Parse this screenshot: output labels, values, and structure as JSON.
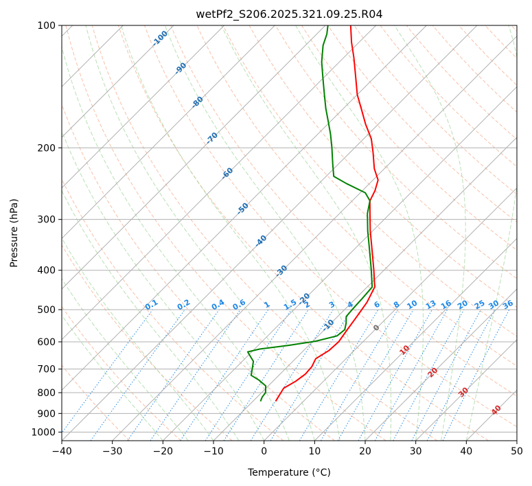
{
  "chart_data": {
    "type": "line",
    "title": "wetPf2_S206.2025.321.09.25.R04",
    "xlabel": "Temperature (°C)",
    "ylabel": "Pressure (hPa)",
    "xlim": [
      -40,
      50
    ],
    "ylim": [
      1050,
      100
    ],
    "y_scale": "log",
    "x_ticks": [
      -40,
      -30,
      -20,
      -10,
      0,
      10,
      20,
      30,
      40,
      50
    ],
    "x_tick_labels": [
      "−40",
      "−30",
      "−20",
      "−10",
      "0",
      "10",
      "20",
      "30",
      "40",
      "50"
    ],
    "y_ticks": [
      100,
      200,
      300,
      400,
      500,
      600,
      700,
      800,
      900,
      1000
    ],
    "y_tick_labels": [
      "100",
      "200",
      "300",
      "400",
      "500",
      "600",
      "700",
      "800",
      "900",
      "1000"
    ],
    "grid": true,
    "skew_deg": 45,
    "isotherms_all": [
      -170,
      -160,
      -150,
      -140,
      -130,
      -120,
      -110,
      -100,
      -90,
      -80,
      -70,
      -60,
      -50,
      -40,
      -30,
      -20,
      -10,
      0,
      10,
      20,
      30,
      40,
      50
    ],
    "isotherm_labels": [
      {
        "t": -100,
        "p": 108,
        "text": "-100"
      },
      {
        "t": -90,
        "p": 128,
        "text": "-90"
      },
      {
        "t": -80,
        "p": 155,
        "text": "-80"
      },
      {
        "t": -70,
        "p": 190,
        "text": "-70"
      },
      {
        "t": -60,
        "p": 232,
        "text": "-60"
      },
      {
        "t": -50,
        "p": 283,
        "text": "-50"
      },
      {
        "t": -40,
        "p": 340,
        "text": "-40"
      },
      {
        "t": -30,
        "p": 403,
        "text": "-30"
      },
      {
        "t": -20,
        "p": 472,
        "text": "-20"
      },
      {
        "t": -10,
        "p": 548,
        "text": "-10"
      },
      {
        "t": 0,
        "p": 555,
        "text": "0"
      },
      {
        "t": 10,
        "p": 630,
        "text": "10"
      },
      {
        "t": 20,
        "p": 715,
        "text": "20"
      },
      {
        "t": 30,
        "p": 800,
        "text": "30"
      },
      {
        "t": 40,
        "p": 885,
        "text": "40"
      }
    ],
    "mixing_ratio_labels": [
      "0.1",
      "0.2",
      "0.4",
      "0.6",
      "1",
      "1.5",
      "2",
      "3",
      "4",
      "6",
      "8",
      "10",
      "13",
      "16",
      "20",
      "25",
      "30",
      "36"
    ],
    "mixing_ratios": [
      0.1,
      0.2,
      0.4,
      0.6,
      1,
      1.5,
      2,
      3,
      4,
      6,
      8,
      10,
      13,
      16,
      20,
      25,
      30,
      36
    ],
    "dry_adiabats_c": [
      -30,
      -20,
      -10,
      0,
      10,
      20,
      30,
      40,
      50,
      60,
      70,
      80,
      90,
      100,
      110,
      120,
      130,
      140,
      150,
      160,
      170,
      180,
      190,
      200,
      210,
      220,
      230,
      240,
      250,
      260,
      270,
      280,
      290,
      300,
      310,
      320,
      330,
      340,
      350
    ],
    "moist_adiabats_c": [
      -20,
      -15,
      -10,
      -5,
      0,
      5,
      10,
      15,
      20,
      25,
      30,
      35,
      40
    ],
    "series": [
      {
        "color": "#ff0000",
        "points": [
          {
            "p": 840,
            "t": -5.5
          },
          {
            "p": 810,
            "t": -6.0
          },
          {
            "p": 780,
            "t": -6.5
          },
          {
            "p": 750,
            "t": -5.5
          },
          {
            "p": 720,
            "t": -5.0
          },
          {
            "p": 690,
            "t": -5.2
          },
          {
            "p": 660,
            "t": -6.0
          },
          {
            "p": 630,
            "t": -5.0
          },
          {
            "p": 600,
            "t": -4.8
          },
          {
            "p": 560,
            "t": -5.5
          },
          {
            "p": 520,
            "t": -6.2
          },
          {
            "p": 480,
            "t": -7.0
          },
          {
            "p": 440,
            "t": -8.5
          },
          {
            "p": 400,
            "t": -12.0
          },
          {
            "p": 360,
            "t": -16.0
          },
          {
            "p": 320,
            "t": -20.5
          },
          {
            "p": 290,
            "t": -24.0
          },
          {
            "p": 270,
            "t": -26.5
          },
          {
            "p": 255,
            "t": -27.5
          },
          {
            "p": 240,
            "t": -29.0
          },
          {
            "p": 225,
            "t": -32.0
          },
          {
            "p": 205,
            "t": -35.5
          },
          {
            "p": 190,
            "t": -38.5
          },
          {
            "p": 175,
            "t": -42.5
          },
          {
            "p": 160,
            "t": -46.5
          },
          {
            "p": 148,
            "t": -50.0
          },
          {
            "p": 135,
            "t": -53.5
          },
          {
            "p": 120,
            "t": -58.0
          },
          {
            "p": 110,
            "t": -61.5
          },
          {
            "p": 100,
            "t": -65.0
          }
        ]
      },
      {
        "color": "#008000",
        "points": [
          {
            "p": 840,
            "t": -8.5
          },
          {
            "p": 820,
            "t": -9.0
          },
          {
            "p": 800,
            "t": -9.2
          },
          {
            "p": 770,
            "t": -10.5
          },
          {
            "p": 745,
            "t": -13.0
          },
          {
            "p": 725,
            "t": -15.5
          },
          {
            "p": 700,
            "t": -16.5
          },
          {
            "p": 670,
            "t": -17.8
          },
          {
            "p": 650,
            "t": -19.5
          },
          {
            "p": 635,
            "t": -20.8
          },
          {
            "p": 625,
            "t": -19.0
          },
          {
            "p": 612,
            "t": -14.0
          },
          {
            "p": 598,
            "t": -9.5
          },
          {
            "p": 580,
            "t": -6.3
          },
          {
            "p": 560,
            "t": -6.0
          },
          {
            "p": 540,
            "t": -7.0
          },
          {
            "p": 520,
            "t": -8.3
          },
          {
            "p": 500,
            "t": -8.5
          },
          {
            "p": 470,
            "t": -8.7
          },
          {
            "p": 440,
            "t": -9.0
          },
          {
            "p": 400,
            "t": -12.5
          },
          {
            "p": 360,
            "t": -16.5
          },
          {
            "p": 320,
            "t": -21.0
          },
          {
            "p": 290,
            "t": -24.5
          },
          {
            "p": 270,
            "t": -26.5
          },
          {
            "p": 258,
            "t": -29.0
          },
          {
            "p": 245,
            "t": -34.5
          },
          {
            "p": 235,
            "t": -38.5
          },
          {
            "p": 220,
            "t": -41.0
          },
          {
            "p": 200,
            "t": -44.5
          },
          {
            "p": 185,
            "t": -47.5
          },
          {
            "p": 172,
            "t": -50.5
          },
          {
            "p": 160,
            "t": -53.5
          },
          {
            "p": 148,
            "t": -56.5
          },
          {
            "p": 135,
            "t": -60.0
          },
          {
            "p": 123,
            "t": -63.5
          },
          {
            "p": 112,
            "t": -66.5
          },
          {
            "p": 105,
            "t": -68.0
          },
          {
            "p": 100,
            "t": -69.5
          }
        ]
      }
    ]
  }
}
